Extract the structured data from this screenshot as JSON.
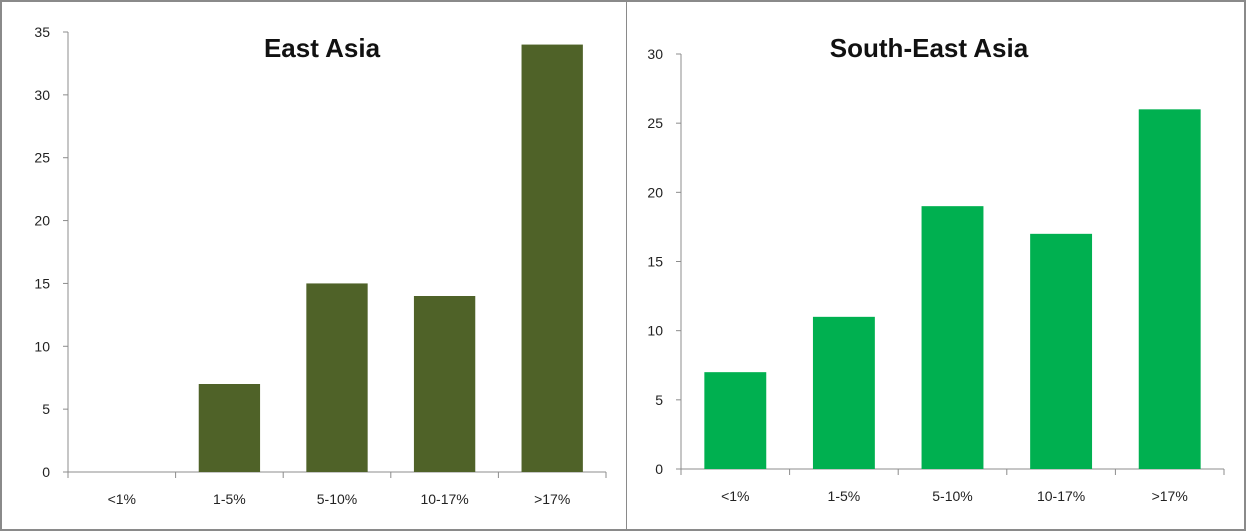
{
  "chart_data": [
    {
      "type": "bar",
      "title": "East Asia",
      "categories": [
        "<1%",
        "1-5%",
        "5-10%",
        "10-17%",
        ">17%"
      ],
      "values": [
        0,
        7,
        15,
        14,
        34
      ],
      "xlabel": "",
      "ylabel": "",
      "ylim": [
        0,
        35
      ],
      "yticks": [
        "0",
        "5",
        "10",
        "15",
        "20",
        "25",
        "30",
        "35"
      ],
      "grid": false,
      "legend": "none",
      "bar_color": "#4f6228"
    },
    {
      "type": "bar",
      "title": "South-East Asia",
      "categories": [
        "<1%",
        "1-5%",
        "5-10%",
        "10-17%",
        ">17%"
      ],
      "values": [
        7,
        11,
        19,
        17,
        26
      ],
      "xlabel": "",
      "ylabel": "",
      "ylim": [
        0,
        30
      ],
      "yticks": [
        "0",
        "5",
        "10",
        "15",
        "20",
        "25",
        "30"
      ],
      "grid": false,
      "legend": "none",
      "bar_color": "#00b050"
    }
  ]
}
